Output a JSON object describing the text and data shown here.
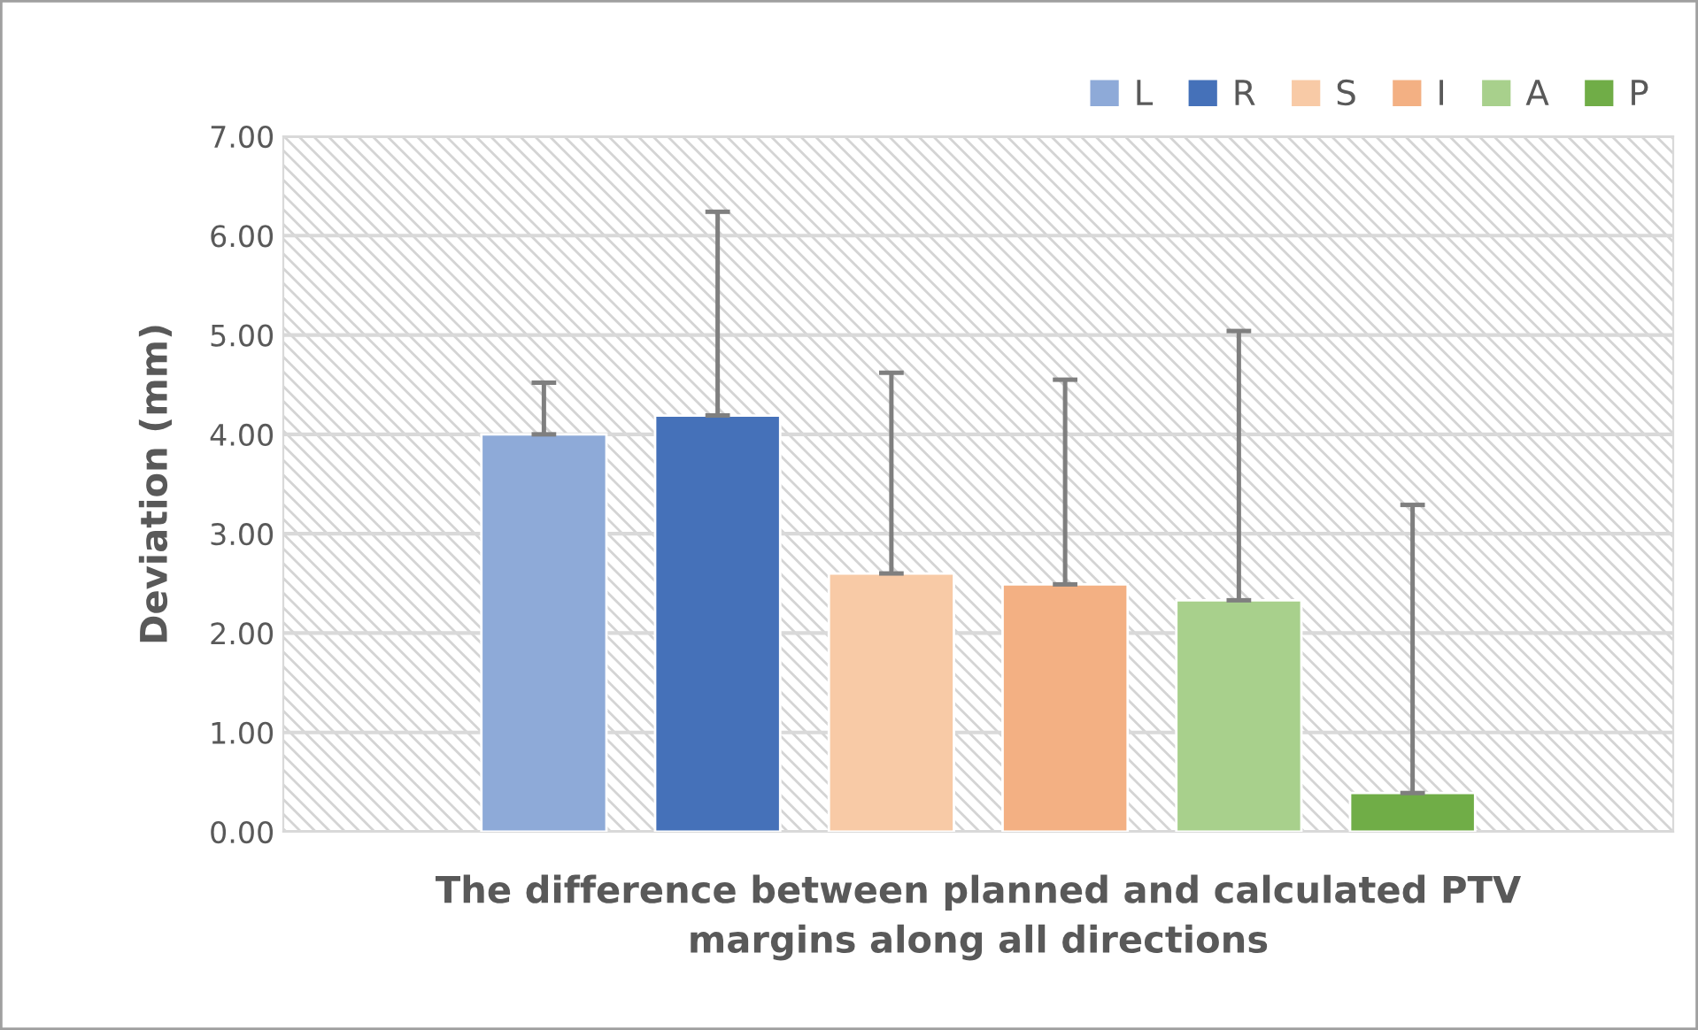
{
  "chart_data": {
    "type": "bar",
    "categories": [
      null
    ],
    "xlabel": "The difference between planned and calculated PTV\nmargins along all directions",
    "ylabel": "Deviation (mm)",
    "series": [
      {
        "name": "L",
        "color": "#8eaad8",
        "values": [
          4.0
        ],
        "errors": [
          [
            4.0,
            4.52
          ]
        ]
      },
      {
        "name": "R",
        "color": "#4571b9",
        "values": [
          4.19
        ],
        "errors": [
          [
            4.19,
            6.24
          ]
        ]
      },
      {
        "name": "S",
        "color": "#f8caa6",
        "values": [
          2.6
        ],
        "errors": [
          [
            2.6,
            4.62
          ]
        ]
      },
      {
        "name": "I",
        "color": "#f3b083",
        "values": [
          2.49
        ],
        "errors": [
          [
            2.49,
            4.55
          ]
        ]
      },
      {
        "name": "A",
        "color": "#a8d08c",
        "values": [
          2.33
        ],
        "errors": [
          [
            2.33,
            5.04
          ]
        ]
      },
      {
        "name": "P",
        "color": "#70ad47",
        "values": [
          0.39
        ],
        "errors": [
          [
            0.39,
            3.29
          ]
        ]
      }
    ],
    "ylim": [
      0,
      7
    ],
    "yticks": [
      {
        "value": 0,
        "label": "0.00"
      },
      {
        "value": 1,
        "label": "1.00"
      },
      {
        "value": 2,
        "label": "2.00"
      },
      {
        "value": 3,
        "label": "3.00"
      },
      {
        "value": 4,
        "label": "4.00"
      },
      {
        "value": 5,
        "label": "5.00"
      },
      {
        "value": 6,
        "label": "6.00"
      },
      {
        "value": 7,
        "label": "7.00"
      }
    ],
    "grid": "y",
    "legend": "top right"
  }
}
